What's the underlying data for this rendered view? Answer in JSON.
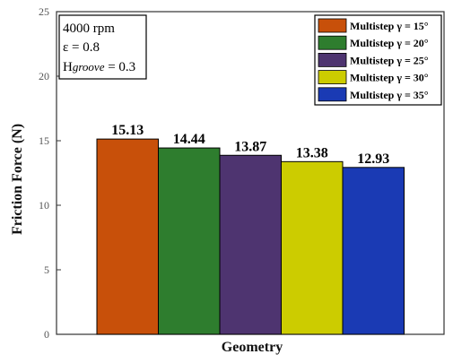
{
  "chart_data": {
    "type": "bar",
    "xlabel": "Geometry",
    "ylabel": "Friction Force (N)",
    "ylim": [
      0,
      25
    ],
    "yticks": [
      0,
      5,
      10,
      15,
      20,
      25
    ],
    "grid": false,
    "legend_position": "top-right",
    "series": [
      {
        "name": "Multistep γ = 15°",
        "value": 15.13,
        "label": "15.13",
        "color": "#C8500A"
      },
      {
        "name": "Multistep γ = 20°",
        "value": 14.44,
        "label": "14.44",
        "color": "#2E7D2E"
      },
      {
        "name": "Multistep γ = 25°",
        "value": 13.87,
        "label": "13.87",
        "color": "#4E3470"
      },
      {
        "name": "Multistep γ = 30°",
        "value": 13.38,
        "label": "13.38",
        "color": "#CCCC00"
      },
      {
        "name": "Multistep γ = 35°",
        "value": 12.93,
        "label": "12.93",
        "color": "#1A3AB4"
      }
    ],
    "annotations": {
      "speed": "4000 rpm",
      "eccentricity": "ε = 0.8",
      "groove_prefix": "H",
      "groove_sub": "groove",
      "groove_value": " = 0.3"
    }
  }
}
